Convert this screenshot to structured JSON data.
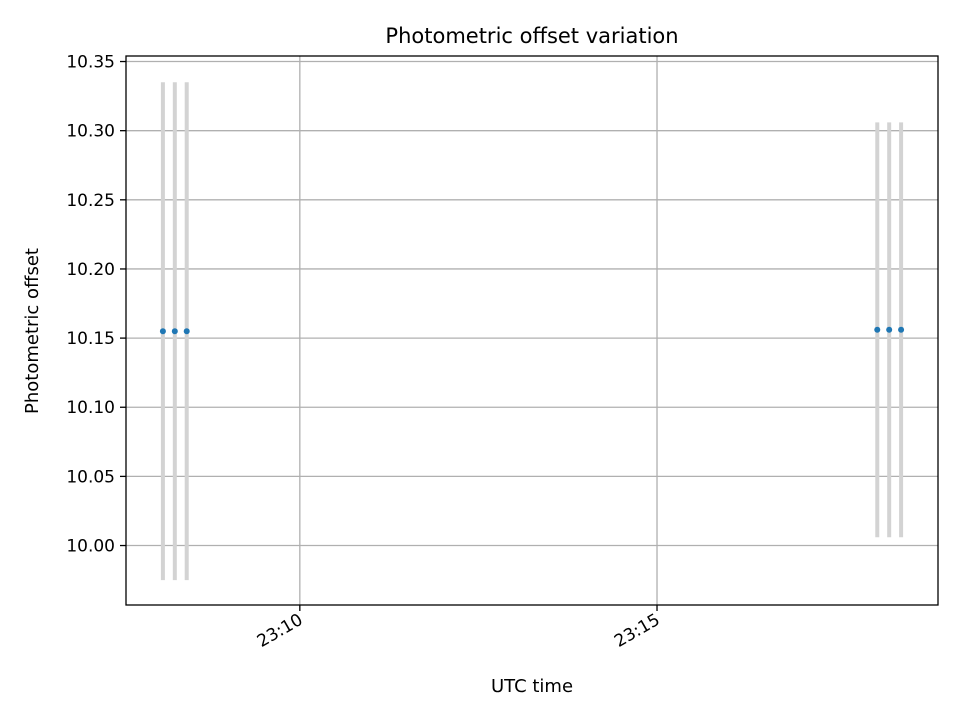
{
  "chart_data": {
    "type": "scatter",
    "title": "Photometric offset variation",
    "xlabel": "UTC time",
    "ylabel": "Photometric offset",
    "x_axis": {
      "kind": "time",
      "range": [
        "23:07:34",
        "23:18:56"
      ],
      "ticks": [
        {
          "value": "23:10:00",
          "label": "23:10"
        },
        {
          "value": "23:15:00",
          "label": "23:15"
        }
      ]
    },
    "y_axis": {
      "range": [
        9.957,
        10.354
      ],
      "ticks": [
        {
          "value": 10.0,
          "label": "10.00"
        },
        {
          "value": 10.05,
          "label": "10.05"
        },
        {
          "value": 10.1,
          "label": "10.10"
        },
        {
          "value": 10.15,
          "label": "10.15"
        },
        {
          "value": 10.2,
          "label": "10.20"
        },
        {
          "value": 10.25,
          "label": "10.25"
        },
        {
          "value": 10.3,
          "label": "10.30"
        },
        {
          "value": 10.35,
          "label": "10.35"
        }
      ]
    },
    "grid": true,
    "marker_color": "#1f77b4",
    "errorbar_color": "#d3d3d3",
    "points": [
      {
        "x": "23:08:05",
        "y": 10.155,
        "yerr": 0.18
      },
      {
        "x": "23:08:15",
        "y": 10.155,
        "yerr": 0.18
      },
      {
        "x": "23:08:25",
        "y": 10.155,
        "yerr": 0.18
      },
      {
        "x": "23:18:05",
        "y": 10.156,
        "yerr": 0.15
      },
      {
        "x": "23:18:15",
        "y": 10.156,
        "yerr": 0.15
      },
      {
        "x": "23:18:25",
        "y": 10.156,
        "yerr": 0.15
      }
    ]
  }
}
